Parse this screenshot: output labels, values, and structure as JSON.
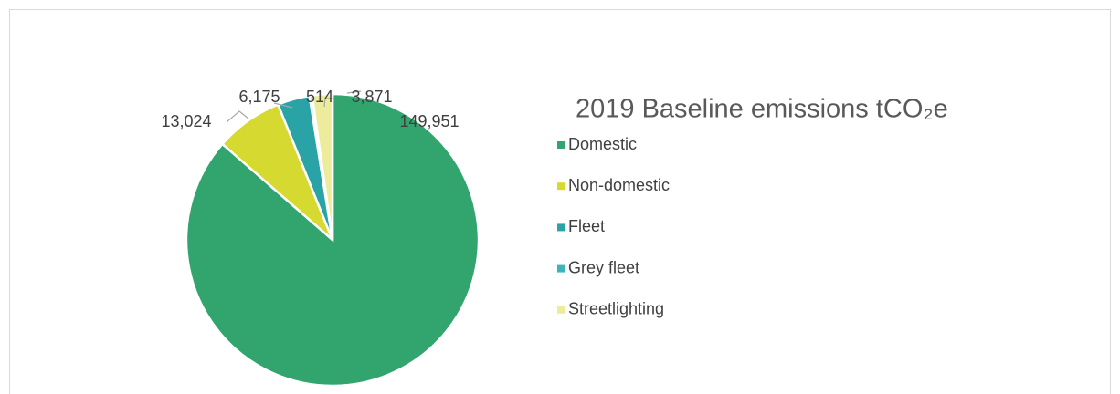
{
  "chart_data": {
    "type": "pie",
    "title": "2019 Baseline emissions tCO₂e",
    "categories": [
      "Domestic",
      "Non-domestic",
      "Fleet",
      "Grey fleet",
      "Streetlighting"
    ],
    "values": [
      149951,
      13024,
      6175,
      514,
      3871
    ],
    "value_labels": [
      "149,951",
      "13,024",
      "6,175",
      "514",
      "3,871"
    ],
    "colors": [
      "#32a56f",
      "#d6d92f",
      "#2aa3a6",
      "#3fb3ba",
      "#ecec9c"
    ],
    "legend": "right"
  }
}
